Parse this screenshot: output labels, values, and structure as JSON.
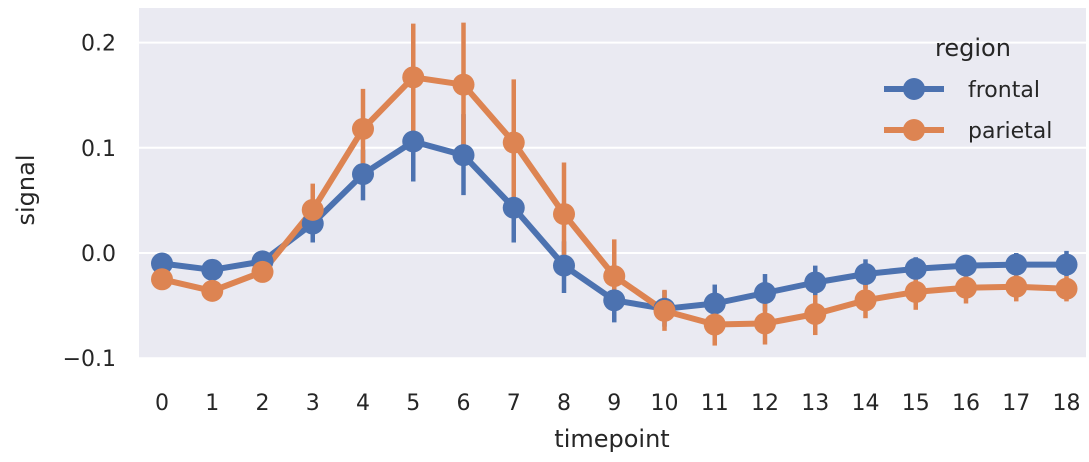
{
  "chart_data": {
    "type": "line",
    "title": "",
    "xlabel": "timepoint",
    "ylabel": "signal",
    "categories": [
      "0",
      "1",
      "2",
      "3",
      "4",
      "5",
      "6",
      "7",
      "8",
      "9",
      "10",
      "11",
      "12",
      "13",
      "14",
      "15",
      "16",
      "17",
      "18"
    ],
    "ylim": [
      -0.1,
      0.23
    ],
    "yticks": [
      -0.1,
      0.0,
      0.1,
      0.2
    ],
    "ytick_labels": [
      "−0.1",
      "0.0",
      "0.1",
      "0.2"
    ],
    "grid": true,
    "legend": {
      "title": "region",
      "placement": "top-right"
    },
    "series": [
      {
        "name": "frontal",
        "color": "#4C72B0",
        "values": [
          -0.01,
          -0.016,
          -0.008,
          0.028,
          0.075,
          0.106,
          0.093,
          0.043,
          -0.012,
          -0.045,
          -0.053,
          -0.048,
          -0.038,
          -0.028,
          -0.02,
          -0.015,
          -0.012,
          -0.011,
          -0.011
        ],
        "ci_low": [
          -0.018,
          -0.025,
          -0.016,
          0.01,
          0.05,
          0.068,
          0.055,
          0.01,
          -0.038,
          -0.066,
          -0.07,
          -0.065,
          -0.055,
          -0.046,
          -0.034,
          -0.027,
          -0.023,
          -0.02,
          -0.022
        ],
        "ci_high": [
          -0.002,
          -0.007,
          0.0,
          0.045,
          0.098,
          0.145,
          0.132,
          0.077,
          0.011,
          -0.025,
          -0.036,
          -0.03,
          -0.02,
          -0.012,
          -0.006,
          -0.004,
          -0.002,
          0.0,
          0.002
        ]
      },
      {
        "name": "parietal",
        "color": "#DD8452",
        "values": [
          -0.025,
          -0.036,
          -0.018,
          0.041,
          0.118,
          0.167,
          0.16,
          0.105,
          0.037,
          -0.022,
          -0.055,
          -0.068,
          -0.067,
          -0.058,
          -0.045,
          -0.037,
          -0.033,
          -0.032,
          -0.034
        ],
        "ci_low": [
          -0.033,
          -0.045,
          -0.028,
          0.018,
          0.082,
          0.11,
          0.103,
          0.05,
          -0.01,
          -0.055,
          -0.074,
          -0.088,
          -0.087,
          -0.078,
          -0.062,
          -0.054,
          -0.048,
          -0.046,
          -0.046
        ],
        "ci_high": [
          -0.017,
          -0.027,
          -0.008,
          0.066,
          0.156,
          0.218,
          0.219,
          0.165,
          0.086,
          0.013,
          -0.035,
          -0.05,
          -0.048,
          -0.04,
          -0.03,
          -0.022,
          -0.018,
          -0.018,
          -0.022
        ]
      }
    ]
  }
}
